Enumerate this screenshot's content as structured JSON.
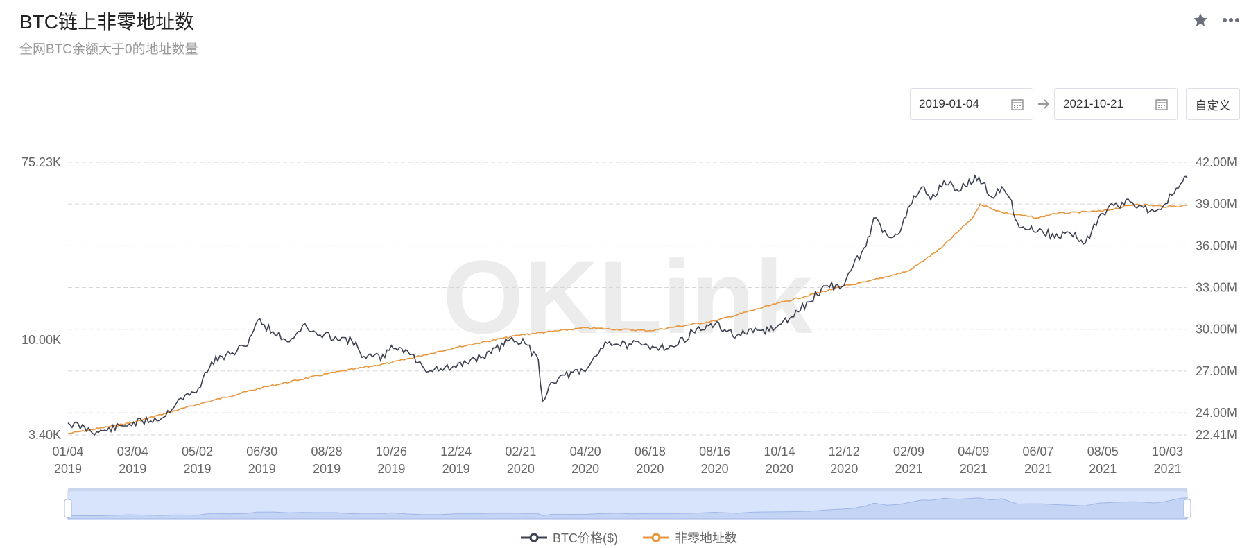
{
  "header": {
    "title": "BTC链上非零地址数",
    "subtitle": "全网BTC余额大于0的地址数量",
    "icons": [
      "star-icon",
      "more-icon"
    ]
  },
  "date_range": {
    "start": "2019-01-04",
    "end": "2021-10-21",
    "custom_label": "自定义"
  },
  "watermark": "OKLink",
  "colors": {
    "price": "#3d4151",
    "addresses": "#e8963e",
    "slider": "#d7e4fb",
    "grid": "#d6d6d6"
  },
  "chart_data": {
    "type": "line",
    "x_ticks": [
      {
        "label": "01/04",
        "year": "2019"
      },
      {
        "label": "03/04",
        "year": "2019"
      },
      {
        "label": "05/02",
        "year": "2019"
      },
      {
        "label": "06/30",
        "year": "2019"
      },
      {
        "label": "08/28",
        "year": "2019"
      },
      {
        "label": "10/26",
        "year": "2019"
      },
      {
        "label": "12/24",
        "year": "2019"
      },
      {
        "label": "02/21",
        "year": "2020"
      },
      {
        "label": "04/20",
        "year": "2020"
      },
      {
        "label": "06/18",
        "year": "2020"
      },
      {
        "label": "08/16",
        "year": "2020"
      },
      {
        "label": "10/14",
        "year": "2020"
      },
      {
        "label": "12/12",
        "year": "2020"
      },
      {
        "label": "02/09",
        "year": "2021"
      },
      {
        "label": "04/09",
        "year": "2021"
      },
      {
        "label": "06/07",
        "year": "2021"
      },
      {
        "label": "08/05",
        "year": "2021"
      },
      {
        "label": "10/03",
        "year": "2021"
      }
    ],
    "y_left": {
      "scale": "log",
      "min": 3400,
      "max": 75230,
      "ticks": [
        "75.23K",
        "10.00K",
        "3.40K"
      ]
    },
    "y_right": {
      "scale": "linear",
      "min": 22.41,
      "max": 42.0,
      "unit": "M",
      "ticks": [
        "42.00M",
        "39.00M",
        "36.00M",
        "33.00M",
        "30.00M",
        "27.00M",
        "24.00M",
        "22.41M"
      ]
    },
    "series": [
      {
        "name": "BTC价格($)",
        "axis": "left",
        "x": [
          "2019-01-04",
          "2019-02-01",
          "2019-03-01",
          "2019-04-01",
          "2019-04-15",
          "2019-05-01",
          "2019-05-15",
          "2019-06-01",
          "2019-06-15",
          "2019-06-26",
          "2019-07-10",
          "2019-07-25",
          "2019-08-06",
          "2019-08-20",
          "2019-09-05",
          "2019-09-20",
          "2019-10-01",
          "2019-10-20",
          "2019-10-26",
          "2019-11-10",
          "2019-11-25",
          "2019-12-10",
          "2019-12-24",
          "2020-01-10",
          "2020-01-25",
          "2020-02-13",
          "2020-02-25",
          "2020-03-08",
          "2020-03-12",
          "2020-03-20",
          "2020-04-01",
          "2020-04-20",
          "2020-05-08",
          "2020-05-20",
          "2020-06-01",
          "2020-06-20",
          "2020-07-10",
          "2020-07-27",
          "2020-08-16",
          "2020-09-05",
          "2020-09-20",
          "2020-10-10",
          "2020-10-25",
          "2020-11-10",
          "2020-11-25",
          "2020-12-10",
          "2020-12-20",
          "2021-01-01",
          "2021-01-08",
          "2021-01-20",
          "2021-02-01",
          "2021-02-10",
          "2021-02-21",
          "2021-03-01",
          "2021-03-13",
          "2021-03-25",
          "2021-04-14",
          "2021-04-25",
          "2021-05-05",
          "2021-05-12",
          "2021-05-19",
          "2021-05-30",
          "2021-06-10",
          "2021-06-22",
          "2021-07-05",
          "2021-07-20",
          "2021-08-01",
          "2021-08-15",
          "2021-08-30",
          "2021-09-07",
          "2021-09-21",
          "2021-10-01",
          "2021-10-15",
          "2021-10-20",
          "2021-10-21"
        ],
        "values": [
          3900,
          3500,
          3850,
          4150,
          5100,
          5500,
          7800,
          8500,
          9300,
          12500,
          11000,
          9800,
          11800,
          10500,
          10400,
          9900,
          8300,
          8200,
          9400,
          8800,
          7200,
          7200,
          7300,
          8100,
          8600,
          10300,
          9600,
          8000,
          5000,
          6200,
          6700,
          7000,
          9800,
          9500,
          9500,
          9300,
          9250,
          11000,
          11900,
          10500,
          10900,
          11400,
          13000,
          15400,
          18500,
          18300,
          23000,
          29000,
          40000,
          33000,
          34000,
          46000,
          57000,
          49000,
          61000,
          55000,
          63500,
          51000,
          57000,
          50000,
          38000,
          35000,
          35000,
          32000,
          34000,
          30000,
          40000,
          46000,
          48000,
          46000,
          43000,
          47000,
          59000,
          64000,
          63000
        ]
      },
      {
        "name": "非零地址数",
        "axis": "right",
        "x": [
          "2019-01-04",
          "2019-03-04",
          "2019-05-02",
          "2019-06-30",
          "2019-08-28",
          "2019-10-26",
          "2019-12-24",
          "2020-02-21",
          "2020-04-20",
          "2020-06-18",
          "2020-08-16",
          "2020-10-14",
          "2020-12-12",
          "2021-01-01",
          "2021-02-09",
          "2021-03-10",
          "2021-04-09",
          "2021-04-15",
          "2021-05-05",
          "2021-06-07",
          "2021-06-20",
          "2021-08-05",
          "2021-09-05",
          "2021-10-03",
          "2021-10-21"
        ],
        "values": [
          22.5,
          23.3,
          24.6,
          25.8,
          26.8,
          27.6,
          28.7,
          29.6,
          30.1,
          29.9,
          30.6,
          31.9,
          33.1,
          33.4,
          34.2,
          35.8,
          38.1,
          39.0,
          38.4,
          38.0,
          38.3,
          38.5,
          39.0,
          38.8,
          38.9
        ]
      }
    ]
  },
  "legend": [
    {
      "label": "BTC价格($)",
      "color": "#3d4151"
    },
    {
      "label": "非零地址数",
      "color": "#e8963e"
    }
  ]
}
